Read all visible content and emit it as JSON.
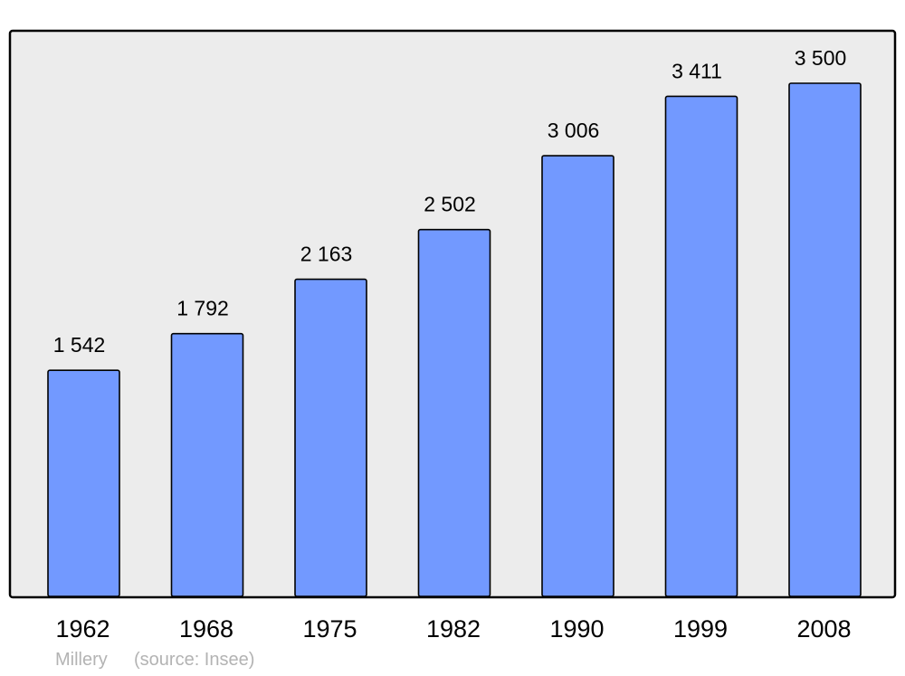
{
  "chart_data": {
    "type": "bar",
    "categories": [
      "1962",
      "1968",
      "1975",
      "1982",
      "1990",
      "1999",
      "2008"
    ],
    "values": [
      1542,
      1792,
      2163,
      2502,
      3006,
      3411,
      3500
    ],
    "data_labels": [
      "1 542",
      "1 792",
      "2 163",
      "2 502",
      "3 006",
      "3 411",
      "3 500"
    ],
    "title": "",
    "xlabel": "",
    "ylabel": "",
    "ylim": [
      0,
      3500
    ],
    "grid": false,
    "colors": {
      "bar": "#7299ff",
      "plot_background": "#ececec",
      "border": "#000000",
      "footer_text": "#b3b3b3"
    }
  },
  "footer": {
    "place": "Millery",
    "source": "(source: Insee)"
  }
}
